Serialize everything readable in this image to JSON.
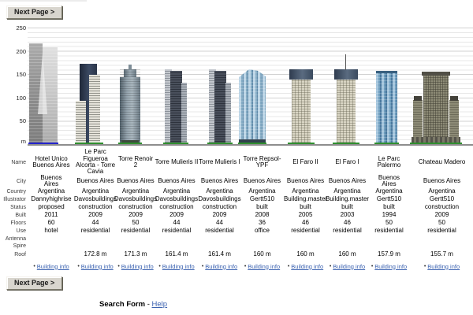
{
  "page": {
    "next_page_top": "Next Page >",
    "next_page_bottom": "Next Page >"
  },
  "footer": {
    "search_form": "Search Form",
    "separator": "-",
    "help": "Help"
  },
  "chart": {
    "unit_label": "m",
    "y_ticks": [
      "250",
      "200",
      "150",
      "100",
      "50"
    ],
    "y_max": 250,
    "gridline_step_m": 10,
    "accent_colors": {
      "ground_green": "#2f8f2f",
      "ground_blue": "#2424cc",
      "gridline": "#e7e7e7",
      "link_blue": "#3b62b0"
    }
  },
  "row_labels": {
    "name": "Name",
    "city": "City",
    "country": "Country",
    "illustrator": "Illustrator",
    "status": "Status",
    "built": "Built",
    "floors": "Floors",
    "use": "Use",
    "antenna": "Antenna",
    "spire": "Spire",
    "roof": "Roof"
  },
  "building_info_label": "Building info",
  "bullet": "•",
  "buildings": [
    {
      "name": "Hotel Unico Buenos Aires",
      "city": "Buenos Aires",
      "country": "Argentina",
      "illustrator": "Dannyhighrise",
      "status": "proposed",
      "built": "2011",
      "floors": "60",
      "use": "hotel",
      "antenna": "",
      "spire": "",
      "roof": ""
    },
    {
      "name": "Le Parc Figueroa Alcorta - Torre Cavia",
      "city": "Buenos Aires",
      "country": "Argentina",
      "illustrator": "Davosbuildings",
      "status": "construction",
      "built": "2009",
      "floors": "44",
      "use": "residential",
      "antenna": "",
      "spire": "",
      "roof": "172.8 m"
    },
    {
      "name": "Torre Renoir 2",
      "city": "Buenos Aires",
      "country": "Argentina",
      "illustrator": "Davosbuildings",
      "status": "construction",
      "built": "2009",
      "floors": "50",
      "use": "residential",
      "antenna": "",
      "spire": "",
      "roof": "171.3 m"
    },
    {
      "name": "Torre Mulieris II",
      "city": "Buenos Aires",
      "country": "Argentina",
      "illustrator": "Davosbuildings",
      "status": "construction",
      "built": "2009",
      "floors": "44",
      "use": "residential",
      "antenna": "",
      "spire": "",
      "roof": "161.4 m"
    },
    {
      "name": "Torre Mulieris I",
      "city": "Buenos Aires",
      "country": "Argentina",
      "illustrator": "Davosbuildings",
      "status": "construction",
      "built": "2009",
      "floors": "44",
      "use": "residential",
      "antenna": "",
      "spire": "",
      "roof": "161.4 m"
    },
    {
      "name": "Torre Repsol-YPF",
      "city": "Buenos Aires",
      "country": "Argentina",
      "illustrator": "Gertt510",
      "status": "built",
      "built": "2008",
      "floors": "36",
      "use": "office",
      "antenna": "",
      "spire": "",
      "roof": "160 m"
    },
    {
      "name": "El Faro II",
      "city": "Buenos Aires",
      "country": "Argentina",
      "illustrator": "Building.master",
      "status": "built",
      "built": "2005",
      "floors": "46",
      "use": "residential",
      "antenna": "",
      "spire": "",
      "roof": "160 m"
    },
    {
      "name": "El Faro I",
      "city": "Buenos Aires",
      "country": "Argentina",
      "illustrator": "Building.master",
      "status": "built",
      "built": "2003",
      "floors": "46",
      "use": "residential",
      "antenna": "",
      "spire": "",
      "roof": "160 m"
    },
    {
      "name": "Le Parc Palermo",
      "city": "Buenos Aires",
      "country": "Argentina",
      "illustrator": "Gertt510",
      "status": "built",
      "built": "1994",
      "floors": "50",
      "use": "residential",
      "antenna": "",
      "spire": "",
      "roof": "157.9 m"
    },
    {
      "name": "Chateau Madero",
      "city": "Buenos Aires",
      "country": "Argentina",
      "illustrator": "Gertt510",
      "status": "construction",
      "built": "2009",
      "floors": "50",
      "use": "residential",
      "antenna": "",
      "spire": "",
      "roof": "155.7 m"
    }
  ]
}
